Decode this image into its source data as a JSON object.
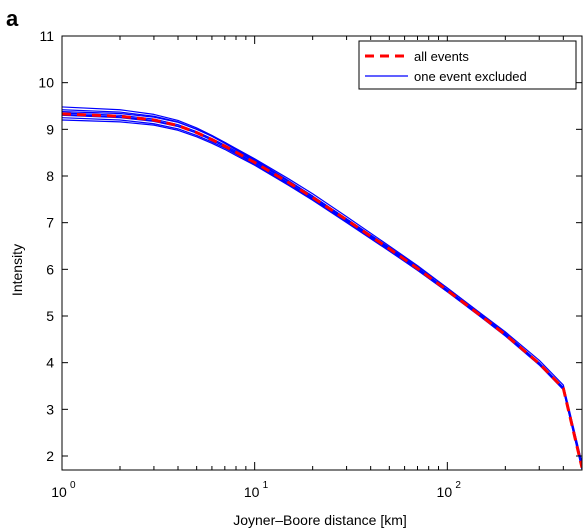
{
  "panel_label": "a",
  "chart_data": {
    "type": "line",
    "xscale": "log",
    "xlim": [
      1,
      500
    ],
    "ylim": [
      1.7,
      11
    ],
    "xlabel": "Joyner–Boore distance [km]",
    "ylabel": "Intensity",
    "x_ticks": [
      {
        "base": "10",
        "exp": "0",
        "value": 1
      },
      {
        "base": "10",
        "exp": "1",
        "value": 10
      },
      {
        "base": "10",
        "exp": "2",
        "value": 100
      }
    ],
    "y_ticks": [
      "2",
      "3",
      "4",
      "5",
      "6",
      "7",
      "8",
      "9",
      "10",
      "11"
    ],
    "legend": {
      "position": "top-right",
      "entries": [
        {
          "label": "all events",
          "color": "#ff0000",
          "style": "dashed"
        },
        {
          "label": "one event excluded",
          "color": "#0000ff",
          "style": "solid"
        }
      ]
    },
    "x": [
      1,
      2,
      3,
      4,
      5,
      6,
      7,
      8,
      10,
      15,
      20,
      30,
      50,
      70,
      100,
      150,
      200,
      300,
      400,
      500
    ],
    "series": [
      {
        "name": "all events",
        "color": "#ff0000",
        "style": "dashed",
        "values": [
          9.33,
          9.28,
          9.2,
          9.08,
          8.93,
          8.78,
          8.64,
          8.51,
          8.29,
          7.86,
          7.54,
          7.06,
          6.44,
          6.02,
          5.55,
          5.0,
          4.6,
          3.98,
          3.45,
          1.75
        ]
      },
      {
        "name": "",
        "color": "#0000ff",
        "style": "solid",
        "values": [
          9.48,
          9.42,
          9.32,
          9.19,
          9.03,
          8.87,
          8.72,
          8.58,
          8.35,
          7.9,
          7.57,
          7.08,
          6.47,
          6.06,
          5.6,
          5.05,
          4.66,
          4.05,
          3.52,
          1.85
        ]
      },
      {
        "name": "",
        "color": "#0000ff",
        "style": "solid",
        "values": [
          9.42,
          9.37,
          9.28,
          9.16,
          9.0,
          8.85,
          8.7,
          8.56,
          8.33,
          7.89,
          7.57,
          7.08,
          6.45,
          6.03,
          5.56,
          5.01,
          4.61,
          3.99,
          3.46,
          1.77
        ]
      },
      {
        "name": "",
        "color": "#0000ff",
        "style": "solid",
        "values": [
          9.35,
          9.3,
          9.22,
          9.1,
          8.95,
          8.8,
          8.66,
          8.53,
          8.31,
          7.88,
          7.56,
          7.07,
          6.45,
          6.03,
          5.56,
          5.0,
          4.6,
          3.98,
          3.45,
          1.74
        ]
      },
      {
        "name": "",
        "color": "#0000ff",
        "style": "solid",
        "values": [
          9.3,
          9.25,
          9.17,
          9.06,
          8.92,
          8.77,
          8.63,
          8.5,
          8.28,
          7.85,
          7.53,
          7.05,
          6.43,
          6.01,
          5.54,
          4.99,
          4.59,
          3.97,
          3.44,
          1.73
        ]
      },
      {
        "name": "",
        "color": "#0000ff",
        "style": "solid",
        "values": [
          9.25,
          9.2,
          9.12,
          9.01,
          8.87,
          8.73,
          8.6,
          8.47,
          8.25,
          7.82,
          7.5,
          7.02,
          6.4,
          5.98,
          5.52,
          4.97,
          4.57,
          3.95,
          3.42,
          1.72
        ]
      },
      {
        "name": "",
        "color": "#0000ff",
        "style": "solid",
        "values": [
          9.2,
          9.16,
          9.09,
          8.98,
          8.84,
          8.7,
          8.57,
          8.44,
          8.23,
          7.8,
          7.48,
          7.0,
          6.39,
          5.98,
          5.52,
          4.98,
          4.59,
          3.98,
          3.46,
          1.8
        ]
      },
      {
        "name": "",
        "color": "#0000ff",
        "style": "solid",
        "values": [
          9.38,
          9.34,
          9.26,
          9.15,
          9.0,
          8.86,
          8.72,
          8.59,
          8.37,
          7.94,
          7.62,
          7.13,
          6.5,
          6.08,
          5.6,
          5.04,
          4.63,
          4.0,
          3.47,
          1.78
        ]
      },
      {
        "name": "",
        "color": "#0000ff",
        "style": "solid",
        "values": [
          9.32,
          9.27,
          9.19,
          9.07,
          8.92,
          8.77,
          8.63,
          8.5,
          8.28,
          7.84,
          7.52,
          7.03,
          6.41,
          6.0,
          5.53,
          4.98,
          4.58,
          3.96,
          3.43,
          1.72
        ]
      }
    ]
  }
}
